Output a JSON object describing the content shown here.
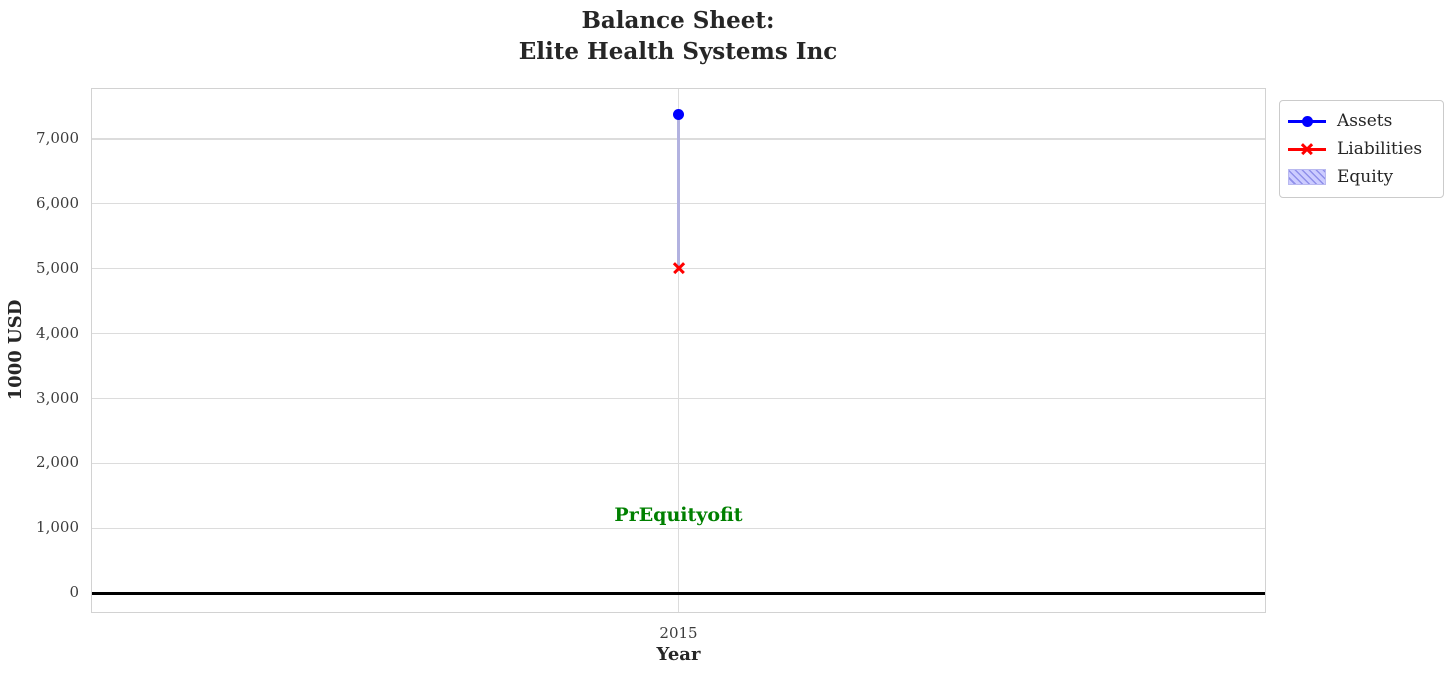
{
  "chart_data": {
    "type": "line",
    "title": "Balance Sheet:\nElite Health Systems Inc",
    "title_lines": [
      "Balance Sheet:",
      "Elite Health Systems Inc"
    ],
    "xlabel": "Year",
    "ylabel": "1000 USD",
    "x": [
      2015
    ],
    "x_tick_labels": [
      "2015"
    ],
    "series": [
      {
        "name": "Assets",
        "values": [
          7380
        ],
        "color": "#0000ff",
        "marker": "circle",
        "legend_marker": "line-circle"
      },
      {
        "name": "Liabilities",
        "values": [
          5010
        ],
        "color": "#ff0000",
        "marker": "x",
        "legend_marker": "line-x"
      },
      {
        "name": "Equity",
        "values": [
          2370
        ],
        "color": "#ccccff",
        "marker": "none",
        "legend_marker": "hatched-patch",
        "style": "hatched area between Liabilities and Assets",
        "hatch": "///"
      }
    ],
    "ylim": [
      -320,
      7770
    ],
    "y_tick_values": [
      0,
      1000,
      2000,
      3000,
      4000,
      5000,
      6000,
      7000
    ],
    "y_tick_labels": [
      "0",
      "1,000",
      "2,000",
      "3,000",
      "4,000",
      "5,000",
      "6,000",
      "7,000"
    ],
    "grid": true,
    "legend_position": "outside-upper-right",
    "legend_entries": [
      "Assets",
      "Liabilities",
      "Equity"
    ],
    "zero_line": {
      "value": 0,
      "color": "#000000"
    },
    "annotation": {
      "text": "PrEquityofit",
      "x": 2015,
      "y": 1200,
      "color": "#008000"
    }
  },
  "colors": {
    "grid": "#dcdcdc",
    "spine": "#d2d2d2",
    "equity_connector": "#b2b2e0",
    "equity_fill": "#ccccff",
    "equity_hatch": "#8f8fea",
    "title_text": "#262626",
    "tick_text": "#3c3c3c"
  }
}
